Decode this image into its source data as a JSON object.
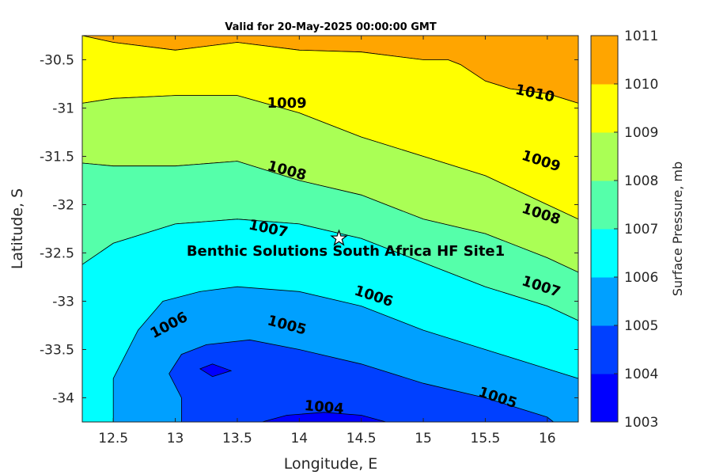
{
  "chart_data": {
    "type": "contour",
    "title": "Valid for 20-May-2025 00:00:00 GMT",
    "xlabel": "Longitude, E",
    "ylabel": "Latitude, S",
    "xlim": [
      12.25,
      16.25
    ],
    "ylim": [
      -34.25,
      -30.25
    ],
    "x_ticks": [
      12.5,
      13,
      13.5,
      14,
      14.5,
      15,
      15.5,
      16
    ],
    "x_tick_labels": [
      "12.5",
      "13",
      "13.5",
      "14",
      "14.5",
      "15",
      "15.5",
      "16"
    ],
    "y_ticks": [
      -30.5,
      -31,
      -31.5,
      -32,
      -32.5,
      -33,
      -33.5,
      -34
    ],
    "y_tick_labels": [
      "-30.5",
      "-31",
      "-31.5",
      "-32",
      "-32.5",
      "-33",
      "-33.5",
      "-34"
    ],
    "colorbar": {
      "label": "Surface Pressure, mb",
      "levels": [
        1003,
        1004,
        1005,
        1006,
        1007,
        1008,
        1009,
        1010,
        1011
      ],
      "level_labels": [
        "1003",
        "1004",
        "1005",
        "1006",
        "1007",
        "1008",
        "1009",
        "1010",
        "1011"
      ],
      "colors": [
        "#0000ff",
        "#0040ff",
        "#00a0ff",
        "#00ffff",
        "#55ffaa",
        "#aaff55",
        "#ffff00",
        "#ffa500",
        "#ff5500"
      ]
    },
    "contour_labels": [
      {
        "text": "1010",
        "lon": 15.9,
        "lat": -30.85,
        "angle": 12
      },
      {
        "text": "1009",
        "lon": 13.9,
        "lat": -30.95,
        "angle": 0
      },
      {
        "text": "1009",
        "lon": 15.95,
        "lat": -31.55,
        "angle": 18
      },
      {
        "text": "1008",
        "lon": 13.9,
        "lat": -31.65,
        "angle": 15
      },
      {
        "text": "1008",
        "lon": 15.95,
        "lat": -32.1,
        "angle": 18
      },
      {
        "text": "1007",
        "lon": 13.75,
        "lat": -32.25,
        "angle": 12
      },
      {
        "text": "1007",
        "lon": 15.95,
        "lat": -32.85,
        "angle": 18
      },
      {
        "text": "1006",
        "lon": 12.95,
        "lat": -33.25,
        "angle": -28
      },
      {
        "text": "1006",
        "lon": 14.6,
        "lat": -32.95,
        "angle": 18
      },
      {
        "text": "1005",
        "lon": 13.9,
        "lat": -33.25,
        "angle": 15
      },
      {
        "text": "1005",
        "lon": 15.6,
        "lat": -34.0,
        "angle": 18
      },
      {
        "text": "1004",
        "lon": 14.2,
        "lat": -34.1,
        "angle": 5
      }
    ],
    "regions": [
      {
        "level": 1010,
        "points": [
          [
            12.25,
            -30.25
          ],
          [
            12.5,
            -30.32
          ],
          [
            13.0,
            -30.4
          ],
          [
            13.5,
            -30.32
          ],
          [
            14.0,
            -30.4
          ],
          [
            14.5,
            -30.42
          ],
          [
            15.0,
            -30.5
          ],
          [
            15.2,
            -30.5
          ],
          [
            15.3,
            -30.55
          ],
          [
            15.5,
            -30.72
          ],
          [
            15.7,
            -30.8
          ],
          [
            16.0,
            -30.85
          ],
          [
            16.25,
            -30.95
          ],
          [
            16.25,
            -30.25
          ]
        ]
      },
      {
        "level": 1009,
        "points": [
          [
            12.25,
            -30.25
          ],
          [
            12.5,
            -30.32
          ],
          [
            13.0,
            -30.4
          ],
          [
            13.5,
            -30.32
          ],
          [
            14.0,
            -30.4
          ],
          [
            14.5,
            -30.42
          ],
          [
            15.0,
            -30.5
          ],
          [
            15.2,
            -30.5
          ],
          [
            15.3,
            -30.55
          ],
          [
            15.5,
            -30.72
          ],
          [
            15.7,
            -30.8
          ],
          [
            16.0,
            -30.85
          ],
          [
            16.25,
            -30.95
          ],
          [
            16.25,
            -32.15
          ],
          [
            16.0,
            -32.0
          ],
          [
            15.5,
            -31.7
          ],
          [
            15.0,
            -31.5
          ],
          [
            14.5,
            -31.3
          ],
          [
            14.0,
            -31.05
          ],
          [
            13.5,
            -30.87
          ],
          [
            13.0,
            -30.87
          ],
          [
            12.5,
            -30.9
          ],
          [
            12.25,
            -30.95
          ]
        ]
      },
      {
        "level": 1008,
        "points": [
          [
            12.25,
            -30.95
          ],
          [
            12.5,
            -30.9
          ],
          [
            13.0,
            -30.87
          ],
          [
            13.5,
            -30.87
          ],
          [
            14.0,
            -31.05
          ],
          [
            14.5,
            -31.3
          ],
          [
            15.0,
            -31.5
          ],
          [
            15.5,
            -31.7
          ],
          [
            16.0,
            -32.0
          ],
          [
            16.25,
            -32.15
          ],
          [
            16.25,
            -32.7
          ],
          [
            16.0,
            -32.55
          ],
          [
            15.5,
            -32.3
          ],
          [
            15.0,
            -32.15
          ],
          [
            14.5,
            -31.9
          ],
          [
            14.0,
            -31.75
          ],
          [
            13.5,
            -31.55
          ],
          [
            13.0,
            -31.6
          ],
          [
            12.5,
            -31.6
          ],
          [
            12.25,
            -31.57
          ]
        ]
      },
      {
        "level": 1007,
        "points": [
          [
            12.25,
            -31.57
          ],
          [
            12.5,
            -31.6
          ],
          [
            13.0,
            -31.6
          ],
          [
            13.5,
            -31.55
          ],
          [
            14.0,
            -31.75
          ],
          [
            14.5,
            -31.9
          ],
          [
            15.0,
            -32.15
          ],
          [
            15.5,
            -32.3
          ],
          [
            16.0,
            -32.55
          ],
          [
            16.25,
            -32.7
          ],
          [
            16.25,
            -33.2
          ],
          [
            16.0,
            -33.05
          ],
          [
            15.5,
            -32.85
          ],
          [
            15.0,
            -32.6
          ],
          [
            14.5,
            -32.35
          ],
          [
            14.0,
            -32.2
          ],
          [
            13.5,
            -32.15
          ],
          [
            13.0,
            -32.2
          ],
          [
            12.5,
            -32.4
          ],
          [
            12.25,
            -32.62
          ]
        ]
      },
      {
        "level": 1006,
        "points": [
          [
            12.25,
            -32.62
          ],
          [
            12.5,
            -32.4
          ],
          [
            13.0,
            -32.2
          ],
          [
            13.5,
            -32.15
          ],
          [
            14.0,
            -32.2
          ],
          [
            14.5,
            -32.35
          ],
          [
            15.0,
            -32.6
          ],
          [
            15.5,
            -32.85
          ],
          [
            16.0,
            -33.05
          ],
          [
            16.25,
            -33.2
          ],
          [
            16.25,
            -34.25
          ],
          [
            12.25,
            -34.25
          ]
        ]
      },
      {
        "level": 1005,
        "points": [
          [
            12.5,
            -34.25
          ],
          [
            12.5,
            -33.8
          ],
          [
            12.7,
            -33.3
          ],
          [
            12.9,
            -33.0
          ],
          [
            13.2,
            -32.9
          ],
          [
            13.5,
            -32.85
          ],
          [
            14.0,
            -32.9
          ],
          [
            14.5,
            -33.05
          ],
          [
            15.0,
            -33.3
          ],
          [
            15.5,
            -33.5
          ],
          [
            16.0,
            -33.7
          ],
          [
            16.25,
            -33.8
          ],
          [
            16.25,
            -34.25
          ]
        ]
      },
      {
        "level": 1004,
        "points": [
          [
            13.05,
            -34.25
          ],
          [
            13.05,
            -34.0
          ],
          [
            12.95,
            -33.75
          ],
          [
            13.05,
            -33.55
          ],
          [
            13.25,
            -33.45
          ],
          [
            13.6,
            -33.4
          ],
          [
            14.0,
            -33.5
          ],
          [
            14.5,
            -33.65
          ],
          [
            15.0,
            -33.85
          ],
          [
            15.5,
            -34.0
          ],
          [
            16.0,
            -34.2
          ],
          [
            16.05,
            -34.25
          ]
        ]
      },
      {
        "level": 1003,
        "points": [
          [
            13.7,
            -34.25
          ],
          [
            13.9,
            -34.18
          ],
          [
            14.2,
            -34.15
          ],
          [
            14.5,
            -34.18
          ],
          [
            14.7,
            -34.25
          ]
        ]
      },
      {
        "level": 1003,
        "points": [
          [
            13.2,
            -33.7
          ],
          [
            13.3,
            -33.65
          ],
          [
            13.45,
            -33.72
          ],
          [
            13.3,
            -33.78
          ]
        ]
      }
    ],
    "site": {
      "name": "Benthic Solutions South Africa HF Site1",
      "lon": 14.32,
      "lat": -32.35
    }
  }
}
